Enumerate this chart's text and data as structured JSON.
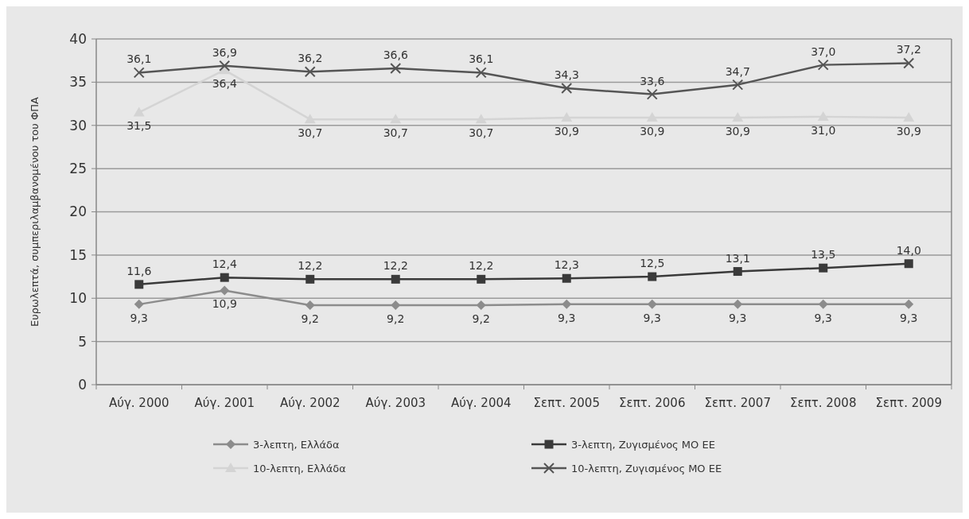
{
  "chart_data": {
    "type": "line",
    "ylabel": "Ευρωλεπτά, συμπεριλαμβανομένου του ΦΠΑ",
    "categories": [
      "Αύγ. 2000",
      "Αύγ. 2001",
      "Αύγ. 2002",
      "Αύγ. 2003",
      "Αύγ. 2004",
      "Σεπτ. 2005",
      "Σεπτ. 2006",
      "Σεπτ. 2007",
      "Σεπτ. 2008",
      "Σεπτ. 2009"
    ],
    "series": [
      {
        "name": "3-λεπτη, Ελλάδα",
        "color": "#8c8c8c",
        "marker": "diamond",
        "values": [
          9.3,
          10.9,
          9.2,
          9.2,
          9.2,
          9.3,
          9.3,
          9.3,
          9.3,
          9.3
        ],
        "value_labels": [
          "9,3",
          "10,9",
          "9,2",
          "9,2",
          "9,2",
          "9,3",
          "9,3",
          "9,3",
          "9,3",
          "9,3"
        ]
      },
      {
        "name": "10-λεπτη, Ελλάδα",
        "color": "#d4d4d4",
        "marker": "triangle",
        "values": [
          31.5,
          36.4,
          30.7,
          30.7,
          30.7,
          30.9,
          30.9,
          30.9,
          31.0,
          30.9
        ],
        "value_labels": [
          "31,5",
          "36,4",
          "30,7",
          "30,7",
          "30,7",
          "30,9",
          "30,9",
          "30,9",
          "31,0",
          "30,9"
        ]
      },
      {
        "name": "3-λεπτη, Ζυγισμένος ΜΟ ΕΕ",
        "color": "#3a3a3a",
        "marker": "square",
        "values": [
          11.6,
          12.4,
          12.2,
          12.2,
          12.2,
          12.3,
          12.5,
          13.1,
          13.5,
          14.0
        ],
        "value_labels": [
          "11,6",
          "12,4",
          "12,2",
          "12,2",
          "12,2",
          "12,3",
          "12,5",
          "13,1",
          "13,5",
          "14,0"
        ]
      },
      {
        "name": "10-λεπτη, Ζυγισμένος ΜΟ ΕΕ",
        "color": "#555555",
        "marker": "cross",
        "values": [
          36.1,
          36.9,
          36.2,
          36.6,
          36.1,
          34.3,
          33.6,
          34.7,
          37.0,
          37.2
        ],
        "value_labels": [
          "36,1",
          "36,9",
          "36,2",
          "36,6",
          "36,1",
          "34,3",
          "33,6",
          "34,7",
          "37,0",
          "37,2"
        ]
      }
    ],
    "ylim": [
      0,
      40
    ],
    "yticks": [
      0,
      5,
      10,
      15,
      20,
      25,
      30,
      35,
      40
    ],
    "grid": "y",
    "legend": "bottom",
    "line_style": "solid"
  }
}
